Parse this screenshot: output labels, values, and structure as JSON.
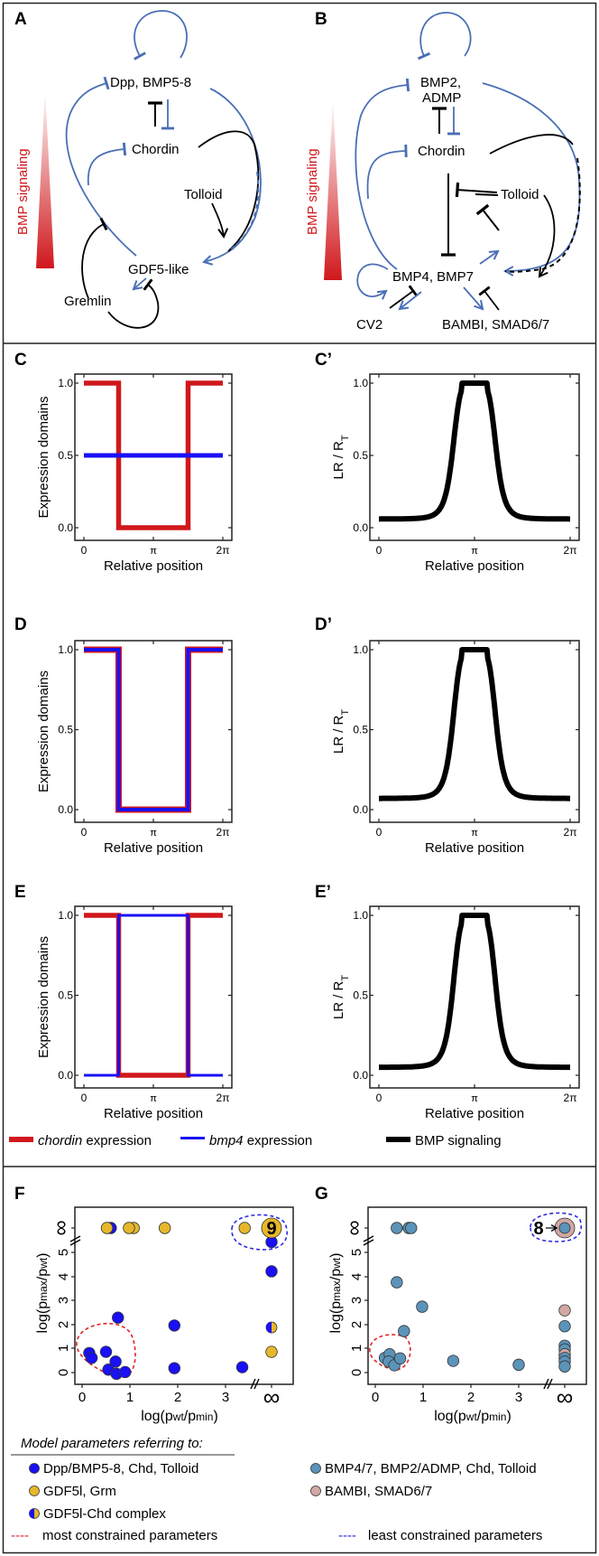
{
  "colors": {
    "bmp_blue": "#4a6fb5",
    "signaling_red": "#d0181c",
    "chordin_red": "#d0181c",
    "bmp4_blue": "#1a10f5",
    "signal_black": "#000000",
    "dark_blue_dot": "#1a10f5",
    "gold_dot": "#e6b72a",
    "steel_dot": "#5b93b9",
    "pink_dot": "#d3a8a3",
    "most_constrained": "#e0252a",
    "least_constrained": "#2a2ae0"
  },
  "panels": {
    "A": {
      "label": "A",
      "gradient_label": "BMP signaling",
      "nodes": [
        "Dpp, BMP5-8",
        "Chordin",
        "Tolloid",
        "GDF5-like",
        "Gremlin"
      ]
    },
    "B": {
      "label": "B",
      "gradient_label": "BMP signaling",
      "nodes": [
        "BMP2,",
        "ADMP",
        "Chordin",
        "Tolloid",
        "BMP4, BMP7",
        "CV2",
        "BAMBI, SMAD6/7"
      ]
    },
    "C": {
      "label": "C"
    },
    "Cp": {
      "label": "C’"
    },
    "D": {
      "label": "D"
    },
    "Dp": {
      "label": "D’"
    },
    "E": {
      "label": "E"
    },
    "Ep": {
      "label": "E’"
    },
    "F": {
      "label": "F"
    },
    "G": {
      "label": "G"
    }
  },
  "profile_legend": [
    {
      "italic": "chordin",
      "text": " expression",
      "color": "#d0181c"
    },
    {
      "italic": "bmp4",
      "text": " expression",
      "color": "#1a10f5"
    },
    {
      "italic": "",
      "text": "BMP signaling",
      "color": "#000000"
    }
  ],
  "param_legend": {
    "title": "Model parameters referring to:",
    "items": [
      {
        "label": "Dpp/BMP5-8, Chd, Tolloid",
        "kind": "dark_blue"
      },
      {
        "label": "BMP4/7, BMP2/ADMP, Chd, Tolloid",
        "kind": "steel"
      },
      {
        "label": "GDF5l, Grm",
        "kind": "gold"
      },
      {
        "label": "BAMBI, SMAD6/7",
        "kind": "pink"
      },
      {
        "label": "GDF5l-Chd complex",
        "kind": "half"
      }
    ],
    "most": "most constrained parameters",
    "least": "least constrained parameters",
    "dash": "----"
  },
  "chart_data": [
    {
      "id": "C",
      "type": "line",
      "xlabel": "Relative position",
      "ylabel": "Expression domains",
      "xticks": [
        "0",
        "π",
        "2π"
      ],
      "yticks": [
        "0.0",
        "0.5",
        "1.0"
      ],
      "xlim": [
        0,
        6.2832
      ],
      "ylim": [
        -0.05,
        1.05
      ],
      "series": [
        {
          "name": "chordin expression",
          "color": "#d0181c",
          "points": [
            [
              0,
              1
            ],
            [
              1.5708,
              1
            ],
            [
              1.5708,
              0
            ],
            [
              4.7124,
              0
            ],
            [
              4.7124,
              1
            ],
            [
              6.2832,
              1
            ]
          ]
        },
        {
          "name": "bmp4 expression",
          "color": "#1a10f5",
          "points": [
            [
              0,
              0.5
            ],
            [
              6.2832,
              0.5
            ]
          ]
        }
      ]
    },
    {
      "id": "Cp",
      "type": "line",
      "xlabel": "Relative position",
      "ylabel": "LR / R",
      "ylabel_sub": "T",
      "xticks": [
        "0",
        "π",
        "2π"
      ],
      "yticks": [
        "0.0",
        "0.5",
        "1.0"
      ],
      "xlim": [
        0,
        6.2832
      ],
      "ylim": [
        -0.05,
        1.05
      ],
      "series": [
        {
          "name": "BMP signaling",
          "color": "#000000",
          "shape": "plateau",
          "baseline": 0.06,
          "plateau": 1.0
        }
      ]
    },
    {
      "id": "D",
      "type": "line",
      "xlabel": "Relative position",
      "ylabel": "Expression domains",
      "xticks": [
        "0",
        "π",
        "2π"
      ],
      "yticks": [
        "0.0",
        "0.5",
        "1.0"
      ],
      "xlim": [
        0,
        6.2832
      ],
      "ylim": [
        -0.05,
        1.05
      ],
      "series": [
        {
          "name": "chordin expression",
          "color": "#d0181c",
          "points": [
            [
              0,
              1
            ],
            [
              1.5708,
              1
            ],
            [
              1.5708,
              0
            ],
            [
              4.7124,
              0
            ],
            [
              4.7124,
              1
            ],
            [
              6.2832,
              1
            ]
          ]
        },
        {
          "name": "bmp4 expression",
          "color": "#1a10f5",
          "points": [
            [
              0,
              1
            ],
            [
              1.5708,
              1
            ],
            [
              1.5708,
              0
            ],
            [
              4.7124,
              0
            ],
            [
              4.7124,
              1
            ],
            [
              6.2832,
              1
            ]
          ]
        }
      ]
    },
    {
      "id": "Dp",
      "type": "line",
      "xlabel": "Relative position",
      "ylabel": "LR / R",
      "ylabel_sub": "T",
      "xticks": [
        "0",
        "π",
        "2π"
      ],
      "yticks": [
        "0.0",
        "0.5",
        "1.0"
      ],
      "xlim": [
        0,
        6.2832
      ],
      "ylim": [
        -0.05,
        1.05
      ],
      "series": [
        {
          "name": "BMP signaling",
          "color": "#000000",
          "shape": "plateau",
          "baseline": 0.07,
          "plateau": 1.0
        }
      ]
    },
    {
      "id": "E",
      "type": "line",
      "xlabel": "Relative position",
      "ylabel": "Expression domains",
      "xticks": [
        "0",
        "π",
        "2π"
      ],
      "yticks": [
        "0.0",
        "0.5",
        "1.0"
      ],
      "xlim": [
        0,
        6.2832
      ],
      "ylim": [
        -0.05,
        1.05
      ],
      "series": [
        {
          "name": "chordin expression",
          "color": "#d0181c",
          "points": [
            [
              0,
              1
            ],
            [
              1.5708,
              1
            ],
            [
              1.5708,
              0
            ],
            [
              4.7124,
              0
            ],
            [
              4.7124,
              1
            ],
            [
              6.2832,
              1
            ]
          ]
        },
        {
          "name": "bmp4 expression",
          "color": "#1a10f5",
          "points": [
            [
              0,
              0
            ],
            [
              1.5708,
              0
            ],
            [
              1.5708,
              1
            ],
            [
              4.7124,
              1
            ],
            [
              4.7124,
              0
            ],
            [
              6.2832,
              0
            ]
          ]
        }
      ]
    },
    {
      "id": "Ep",
      "type": "line",
      "xlabel": "Relative position",
      "ylabel": "LR / R",
      "ylabel_sub": "T",
      "xticks": [
        "0",
        "π",
        "2π"
      ],
      "yticks": [
        "0.0",
        "0.5",
        "1.0"
      ],
      "xlim": [
        0,
        6.2832
      ],
      "ylim": [
        -0.05,
        1.05
      ],
      "series": [
        {
          "name": "BMP signaling",
          "color": "#000000",
          "shape": "plateau",
          "baseline": 0.05,
          "plateau": 1.0
        }
      ]
    },
    {
      "id": "F",
      "type": "scatter",
      "xlabel": "log(p",
      "xlabel_sub1": "wt",
      "xlabel_mid": "/p",
      "xlabel_sub2": "min",
      "xlabel_end": ")",
      "ylabel": "log(p",
      "ylabel_sub1": "max",
      "ylabel_mid": "/p",
      "ylabel_sub2": "wt",
      "ylabel_end": ")",
      "xticks": [
        "0",
        "1",
        "2",
        "3",
        "∞"
      ],
      "yticks": [
        "0",
        "1",
        "2",
        "3",
        "4",
        "5",
        "∞"
      ],
      "xlim": [
        -0.15,
        4.5
      ],
      "ylim": [
        -0.4,
        6.5
      ],
      "infinity_value": 4.0,
      "cluster_count_label": "9",
      "points": [
        {
          "x": 0.15,
          "y": 0.8,
          "kind": "dark_blue"
        },
        {
          "x": 0.2,
          "y": 0.6,
          "kind": "dark_blue"
        },
        {
          "x": 0.5,
          "y": 0.85,
          "kind": "dark_blue"
        },
        {
          "x": 0.55,
          "y": 0.12,
          "kind": "dark_blue"
        },
        {
          "x": 0.7,
          "y": 0.45,
          "kind": "dark_blue"
        },
        {
          "x": 0.72,
          "y": -0.05,
          "kind": "dark_blue"
        },
        {
          "x": 0.9,
          "y": 0.02,
          "kind": "dark_blue"
        },
        {
          "x": 0.75,
          "y": 2.25,
          "kind": "dark_blue"
        },
        {
          "x": 1.93,
          "y": 1.93,
          "kind": "dark_blue"
        },
        {
          "x": 1.93,
          "y": 0.18,
          "kind": "dark_blue"
        },
        {
          "x": 3.35,
          "y": 0.22,
          "kind": "dark_blue"
        },
        {
          "x": "inf",
          "y": 5.35,
          "kind": "dark_blue"
        },
        {
          "x": "inf",
          "y": 4.15,
          "kind": "dark_blue"
        },
        {
          "x": "inf",
          "y": 1.85,
          "kind": "half"
        },
        {
          "x": "inf",
          "y": 0.85,
          "kind": "gold"
        },
        {
          "x": 0.6,
          "y": "inf",
          "kind": "dark_blue"
        },
        {
          "x": 0.52,
          "y": "inf",
          "kind": "gold"
        },
        {
          "x": 1.08,
          "y": "inf",
          "kind": "gold"
        },
        {
          "x": 0.98,
          "y": "inf",
          "kind": "gold"
        },
        {
          "x": 1.73,
          "y": "inf",
          "kind": "gold"
        },
        {
          "x": 3.4,
          "y": "inf",
          "kind": "gold"
        },
        {
          "x": "inf",
          "y": "inf",
          "kind": "gold_big"
        }
      ]
    },
    {
      "id": "G",
      "type": "scatter",
      "xlabel": "log(p",
      "xlabel_sub1": "wt",
      "xlabel_mid": "/p",
      "xlabel_sub2": "min",
      "xlabel_end": ")",
      "ylabel": "log(p",
      "ylabel_sub1": "max",
      "ylabel_mid": "/p",
      "ylabel_sub2": "wt",
      "ylabel_end": ")",
      "xticks": [
        "0",
        "1",
        "2",
        "3",
        "∞"
      ],
      "yticks": [
        "0",
        "1",
        "2",
        "3",
        "4",
        "5",
        "∞"
      ],
      "xlim": [
        -0.15,
        4.5
      ],
      "ylim": [
        -0.4,
        6.5
      ],
      "infinity_value": 4.0,
      "cluster_count_label": "8",
      "points": [
        {
          "x": 0.2,
          "y": 0.6,
          "kind": "steel"
        },
        {
          "x": 0.3,
          "y": 0.75,
          "kind": "steel"
        },
        {
          "x": 0.28,
          "y": 0.45,
          "kind": "steel"
        },
        {
          "x": 0.4,
          "y": 0.3,
          "kind": "steel"
        },
        {
          "x": 0.52,
          "y": 0.58,
          "kind": "steel"
        },
        {
          "x": 0.45,
          "y": 3.7,
          "kind": "steel"
        },
        {
          "x": 0.98,
          "y": 2.7,
          "kind": "steel"
        },
        {
          "x": 0.6,
          "y": 1.7,
          "kind": "steel"
        },
        {
          "x": 1.63,
          "y": 0.48,
          "kind": "steel"
        },
        {
          "x": 3.0,
          "y": 0.32,
          "kind": "steel"
        },
        {
          "x": 0.45,
          "y": "inf",
          "kind": "steel"
        },
        {
          "x": 0.7,
          "y": "inf",
          "kind": "steel"
        },
        {
          "x": 0.75,
          "y": "inf",
          "kind": "steel"
        },
        {
          "x": "inf",
          "y": 2.55,
          "kind": "pink"
        },
        {
          "x": "inf",
          "y": 1.9,
          "kind": "steel"
        },
        {
          "x": "inf",
          "y": 1.1,
          "kind": "steel"
        },
        {
          "x": "inf",
          "y": 0.95,
          "kind": "steel"
        },
        {
          "x": "inf",
          "y": 0.75,
          "kind": "pink"
        },
        {
          "x": "inf",
          "y": 0.6,
          "kind": "steel"
        },
        {
          "x": "inf",
          "y": 0.45,
          "kind": "steel"
        },
        {
          "x": "inf",
          "y": 0.25,
          "kind": "steel"
        },
        {
          "x": "inf",
          "y": "inf",
          "kind": "pink_big"
        }
      ]
    }
  ]
}
